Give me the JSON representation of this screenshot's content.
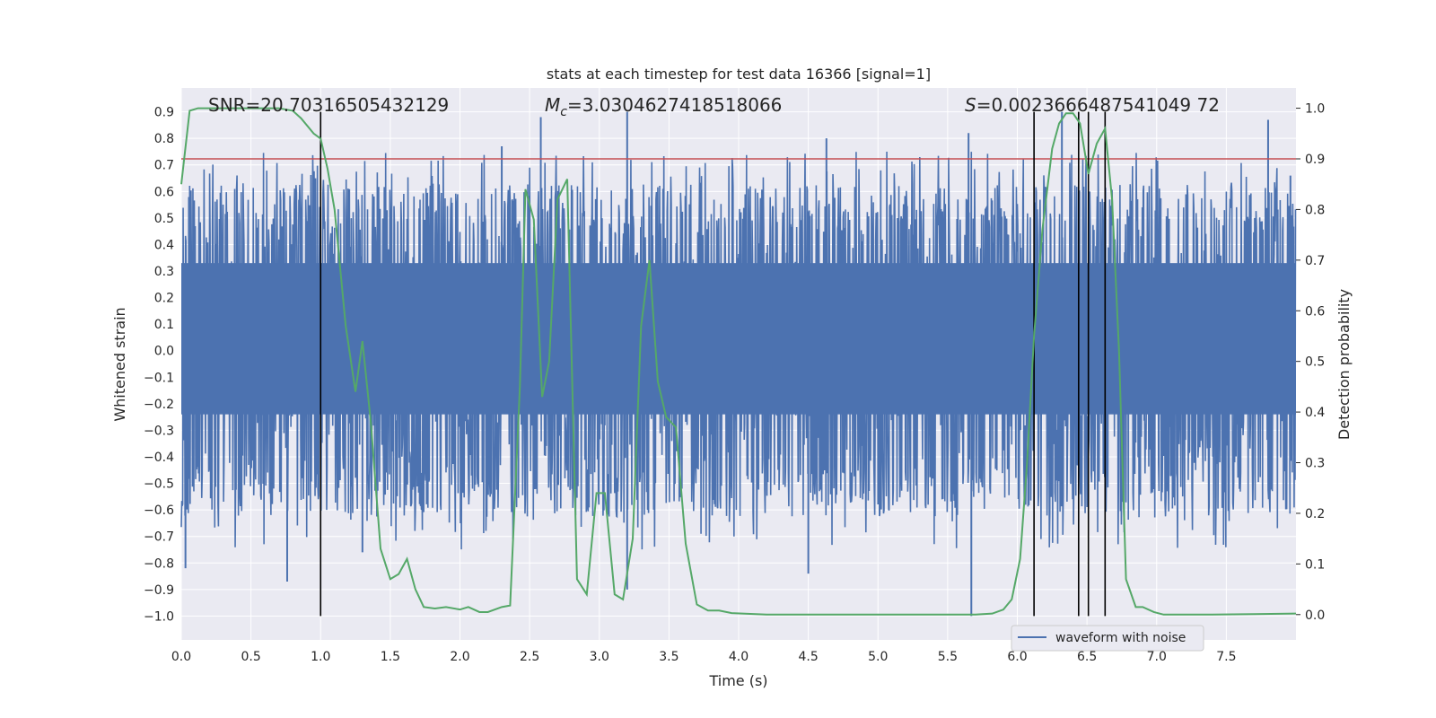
{
  "chart_data": {
    "type": "line",
    "title": "stats at each timestep for test data 16366 [signal=1]",
    "xlabel": "Time (s)",
    "ylabel_left": "Whitened strain",
    "ylabel_right": "Detection probability",
    "xlim": [
      0.0,
      8.0
    ],
    "ylim_left": [
      -1.09,
      0.99
    ],
    "ylim_right": [
      -0.05,
      1.04
    ],
    "x_ticks": [
      "0.0",
      "0.5",
      "1.0",
      "1.5",
      "2.0",
      "2.5",
      "3.0",
      "3.5",
      "4.0",
      "4.5",
      "5.0",
      "5.5",
      "6.0",
      "6.5",
      "7.0",
      "7.5"
    ],
    "y_left_ticks": [
      "-1.0",
      "-0.9",
      "-0.8",
      "-0.7",
      "-0.6",
      "-0.5",
      "-0.4",
      "-0.3",
      "-0.2",
      "-0.1",
      "0.0",
      "0.1",
      "0.2",
      "0.3",
      "0.4",
      "0.5",
      "0.6",
      "0.7",
      "0.8",
      "0.9"
    ],
    "y_right_ticks": [
      "0.0",
      "0.1",
      "0.2",
      "0.3",
      "0.4",
      "0.5",
      "0.6",
      "0.7",
      "0.8",
      "0.9",
      "1.0"
    ],
    "grid": true,
    "annotations": {
      "snr": "SNR=20.70316505432129",
      "mc_symbol": "M",
      "mc_sub": "c",
      "mc_value": "=3.0304627418518066",
      "s_symbol": "S",
      "s_value": "=0.0023666487541049 72"
    },
    "threshold": {
      "value": 0.9,
      "axis": "right",
      "color": "#c44e52"
    },
    "vertical_lines": [
      1.0,
      6.12,
      6.44,
      6.51,
      6.63
    ],
    "vertical_line_range": [
      -1.0,
      0.9
    ],
    "waveform": {
      "name": "waveform with noise",
      "color": "#4c72b0",
      "samples": 2400,
      "band": 0.45,
      "tails": 0.3,
      "spikes": [
        {
          "t": 0.76,
          "v": -0.87
        },
        {
          "t": 2.58,
          "v": 0.88
        },
        {
          "t": 3.2,
          "v": 0.9
        },
        {
          "t": 5.67,
          "v": -1.0
        },
        {
          "t": 7.8,
          "v": 0.87
        },
        {
          "t": 5.65,
          "v": 0.82
        },
        {
          "t": 4.63,
          "v": 0.8
        },
        {
          "t": 6.32,
          "v": 0.9
        },
        {
          "t": 1.3,
          "v": -0.76
        },
        {
          "t": 3.2,
          "v": -0.9
        },
        {
          "t": 4.5,
          "v": -0.84
        },
        {
          "t": 0.03,
          "v": -0.82
        },
        {
          "t": 7.96,
          "v": 0.66
        },
        {
          "t": 2.3,
          "v": 0.77
        }
      ]
    },
    "probability": {
      "name": "detection probability",
      "color": "#55a868",
      "points": [
        [
          0.0,
          0.85
        ],
        [
          0.06,
          0.995
        ],
        [
          0.12,
          1.0
        ],
        [
          0.3,
          1.0
        ],
        [
          0.5,
          1.0
        ],
        [
          0.7,
          1.0
        ],
        [
          0.8,
          0.995
        ],
        [
          0.86,
          0.98
        ],
        [
          0.95,
          0.95
        ],
        [
          1.0,
          0.94
        ],
        [
          1.05,
          0.88
        ],
        [
          1.1,
          0.8
        ],
        [
          1.18,
          0.57
        ],
        [
          1.25,
          0.44
        ],
        [
          1.3,
          0.54
        ],
        [
          1.36,
          0.38
        ],
        [
          1.43,
          0.13
        ],
        [
          1.5,
          0.07
        ],
        [
          1.56,
          0.08
        ],
        [
          1.62,
          0.11
        ],
        [
          1.68,
          0.05
        ],
        [
          1.74,
          0.015
        ],
        [
          1.82,
          0.012
        ],
        [
          1.9,
          0.015
        ],
        [
          2.0,
          0.01
        ],
        [
          2.06,
          0.015
        ],
        [
          2.14,
          0.005
        ],
        [
          2.2,
          0.005
        ],
        [
          2.3,
          0.015
        ],
        [
          2.36,
          0.018
        ],
        [
          2.43,
          0.45
        ],
        [
          2.47,
          0.84
        ],
        [
          2.53,
          0.78
        ],
        [
          2.59,
          0.43
        ],
        [
          2.64,
          0.5
        ],
        [
          2.7,
          0.82
        ],
        [
          2.77,
          0.86
        ],
        [
          2.84,
          0.07
        ],
        [
          2.91,
          0.04
        ],
        [
          2.98,
          0.24
        ],
        [
          3.04,
          0.24
        ],
        [
          3.11,
          0.04
        ],
        [
          3.17,
          0.03
        ],
        [
          3.24,
          0.15
        ],
        [
          3.3,
          0.57
        ],
        [
          3.36,
          0.7
        ],
        [
          3.42,
          0.46
        ],
        [
          3.48,
          0.39
        ],
        [
          3.55,
          0.37
        ],
        [
          3.62,
          0.14
        ],
        [
          3.7,
          0.02
        ],
        [
          3.78,
          0.008
        ],
        [
          3.86,
          0.008
        ],
        [
          3.95,
          0.003
        ],
        [
          4.2,
          0.0
        ],
        [
          4.6,
          0.0
        ],
        [
          5.0,
          0.0
        ],
        [
          5.4,
          0.0
        ],
        [
          5.7,
          0.0
        ],
        [
          5.82,
          0.002
        ],
        [
          5.9,
          0.01
        ],
        [
          5.96,
          0.03
        ],
        [
          6.02,
          0.11
        ],
        [
          6.07,
          0.3
        ],
        [
          6.12,
          0.55
        ],
        [
          6.18,
          0.76
        ],
        [
          6.25,
          0.92
        ],
        [
          6.3,
          0.97
        ],
        [
          6.35,
          0.99
        ],
        [
          6.4,
          0.99
        ],
        [
          6.45,
          0.97
        ],
        [
          6.51,
          0.87
        ],
        [
          6.57,
          0.93
        ],
        [
          6.63,
          0.96
        ],
        [
          6.68,
          0.82
        ],
        [
          6.73,
          0.52
        ],
        [
          6.78,
          0.07
        ],
        [
          6.85,
          0.015
        ],
        [
          6.9,
          0.015
        ],
        [
          6.98,
          0.005
        ],
        [
          7.05,
          0.0
        ],
        [
          7.4,
          0.0
        ],
        [
          7.7,
          0.001
        ],
        [
          8.0,
          0.002
        ]
      ]
    },
    "legend": {
      "label": "waveform with noise",
      "placement": "bottom-right"
    }
  }
}
